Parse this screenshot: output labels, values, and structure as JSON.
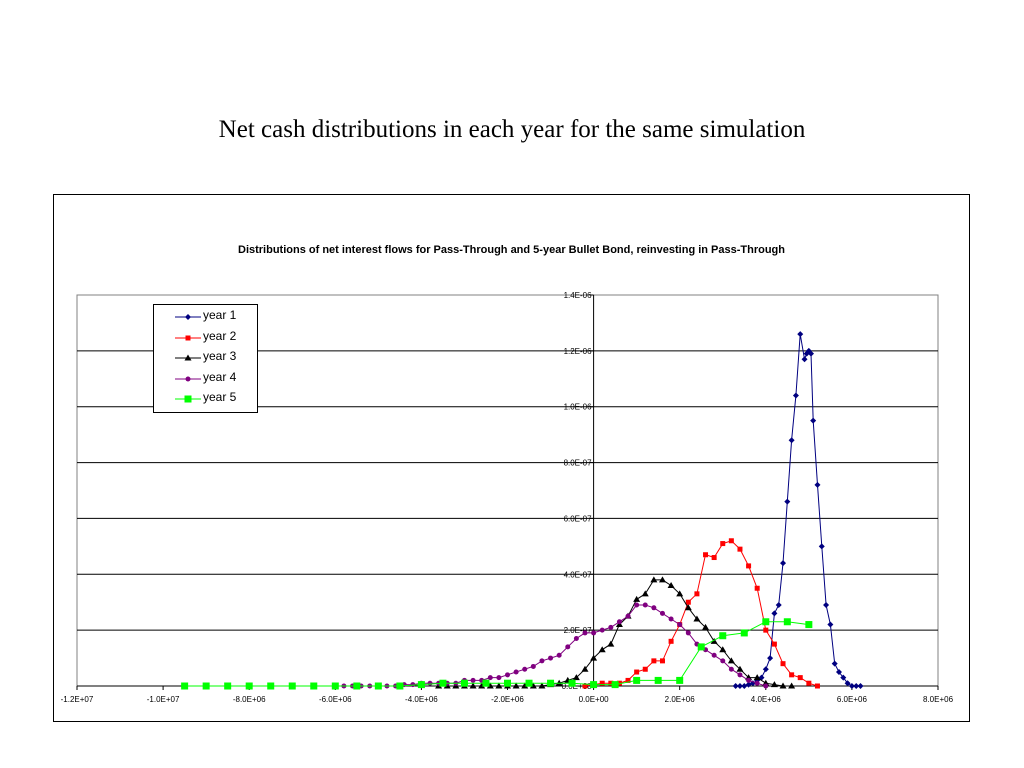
{
  "slide": {
    "title": "Net cash distributions in each year for the same simulation"
  },
  "chart_data": {
    "type": "line",
    "title": "Distributions of net interest flows for Pass-Through and 5-year Bullet Bond, reinvesting in Pass-Through",
    "xlabel": "",
    "ylabel": "",
    "xlim": [
      -12000000,
      8000000
    ],
    "ylim": [
      0,
      1.4e-06
    ],
    "x_ticks": [
      -12000000,
      -10000000,
      -8000000,
      -6000000,
      -4000000,
      -2000000,
      0,
      2000000,
      4000000,
      6000000,
      8000000
    ],
    "x_tick_labels": [
      "-1.2E+07",
      "-1.0E+07",
      "-8.0E+06",
      "-6.0E+06",
      "-4.0E+06",
      "-2.0E+06",
      "0.0E+00",
      "2.0E+06",
      "4.0E+06",
      "6.0E+06",
      "8.0E+06"
    ],
    "y_ticks": [
      0,
      2e-07,
      4e-07,
      6e-07,
      8e-07,
      1e-06,
      1.2e-06,
      1.4e-06
    ],
    "y_tick_labels": [
      "0.0E+00",
      "2.0E-07",
      "4.0E-07",
      "6.0E-07",
      "8.0E-07",
      "1.0E-06",
      "1.2E-06",
      "1.4E-06"
    ],
    "grid": "horizontal",
    "legend_position": "top-left",
    "series": [
      {
        "name": "year 1",
        "color": "#000080",
        "marker": "diamond",
        "x": [
          3300000,
          3400000,
          3500000,
          3600000,
          3700000,
          3800000,
          3900000,
          4000000,
          4100000,
          4200000,
          4300000,
          4400000,
          4500000,
          4600000,
          4700000,
          4800000,
          4900000,
          4950000,
          5000000,
          5050000,
          5100000,
          5200000,
          5300000,
          5400000,
          5500000,
          5600000,
          5700000,
          5800000,
          5900000,
          6000000,
          6100000,
          6200000
        ],
        "y": [
          0,
          0,
          0,
          5e-09,
          1e-08,
          2e-08,
          3e-08,
          6e-08,
          1e-07,
          2.6e-07,
          2.9e-07,
          4.4e-07,
          6.6e-07,
          8.8e-07,
          1.04e-06,
          1.26e-06,
          1.17e-06,
          1.19e-06,
          1.2e-06,
          1.19e-06,
          9.5e-07,
          7.2e-07,
          5e-07,
          2.9e-07,
          2.2e-07,
          8e-08,
          5e-08,
          3e-08,
          1e-08,
          0,
          0,
          0
        ]
      },
      {
        "name": "year 2",
        "color": "#ff0000",
        "marker": "square",
        "x": [
          -200000,
          0,
          200000,
          400000,
          600000,
          800000,
          1000000,
          1200000,
          1400000,
          1600000,
          1800000,
          2000000,
          2200000,
          2400000,
          2600000,
          2800000,
          3000000,
          3200000,
          3400000,
          3600000,
          3800000,
          4000000,
          4200000,
          4400000,
          4600000,
          4800000,
          5000000,
          5200000
        ],
        "y": [
          0,
          5e-09,
          1e-08,
          1e-08,
          1e-08,
          2e-08,
          5e-08,
          6e-08,
          9e-08,
          9e-08,
          1.6e-07,
          2.2e-07,
          3e-07,
          3.3e-07,
          4.7e-07,
          4.6e-07,
          5.1e-07,
          5.2e-07,
          4.9e-07,
          4.3e-07,
          3.5e-07,
          2e-07,
          1.5e-07,
          8e-08,
          4e-08,
          3e-08,
          1e-08,
          0
        ]
      },
      {
        "name": "year 3",
        "color": "#000000",
        "marker": "triangle",
        "x": [
          -3600000,
          -3400000,
          -3200000,
          -3000000,
          -2800000,
          -2600000,
          -2400000,
          -2200000,
          -2000000,
          -1800000,
          -1600000,
          -1400000,
          -1200000,
          -1000000,
          -800000,
          -600000,
          -400000,
          -200000,
          0,
          200000,
          400000,
          600000,
          800000,
          1000000,
          1200000,
          1400000,
          1600000,
          1800000,
          2000000,
          2200000,
          2400000,
          2600000,
          2800000,
          3000000,
          3200000,
          3400000,
          3600000,
          3800000,
          4000000,
          4200000,
          4400000,
          4600000
        ],
        "y": [
          0,
          0,
          0,
          0,
          0,
          0,
          0,
          0,
          0,
          0,
          0,
          0,
          0,
          5e-09,
          1e-08,
          2e-08,
          3e-08,
          6e-08,
          1e-07,
          1.3e-07,
          1.5e-07,
          2.2e-07,
          2.5e-07,
          3.1e-07,
          3.3e-07,
          3.8e-07,
          3.8e-07,
          3.6e-07,
          3.3e-07,
          2.8e-07,
          2.4e-07,
          2.1e-07,
          1.6e-07,
          1.3e-07,
          9e-08,
          6e-08,
          3e-08,
          3e-08,
          1e-08,
          5e-09,
          0,
          0
        ]
      },
      {
        "name": "year 4",
        "color": "#800080",
        "marker": "circle",
        "x": [
          -6000000,
          -5800000,
          -5600000,
          -5400000,
          -5200000,
          -5000000,
          -4800000,
          -4600000,
          -4400000,
          -4200000,
          -4000000,
          -3800000,
          -3600000,
          -3400000,
          -3200000,
          -3000000,
          -2800000,
          -2600000,
          -2400000,
          -2200000,
          -2000000,
          -1800000,
          -1600000,
          -1400000,
          -1200000,
          -1000000,
          -800000,
          -600000,
          -400000,
          -200000,
          0,
          200000,
          400000,
          600000,
          800000,
          1000000,
          1200000,
          1400000,
          1600000,
          1800000,
          2000000,
          2200000,
          2400000,
          2600000,
          2800000,
          3000000,
          3200000,
          3400000,
          3600000,
          3800000,
          4000000
        ],
        "y": [
          0,
          0,
          0,
          0,
          0,
          0,
          0,
          0,
          5e-09,
          5e-09,
          1e-08,
          1e-08,
          1e-08,
          1e-08,
          1e-08,
          2e-08,
          2e-08,
          2e-08,
          3e-08,
          3e-08,
          4e-08,
          5e-08,
          6e-08,
          7e-08,
          9e-08,
          1e-07,
          1.1e-07,
          1.4e-07,
          1.7e-07,
          1.9e-07,
          1.9e-07,
          2e-07,
          2.1e-07,
          2.3e-07,
          2.5e-07,
          2.9e-07,
          2.9e-07,
          2.8e-07,
          2.6e-07,
          2.4e-07,
          2.2e-07,
          1.9e-07,
          1.5e-07,
          1.3e-07,
          1.1e-07,
          9e-08,
          6e-08,
          4e-08,
          2e-08,
          1e-08,
          0
        ]
      },
      {
        "name": "year 5",
        "color": "#00ff00",
        "marker": "square",
        "x": [
          -9500000,
          -9000000,
          -8500000,
          -8000000,
          -7500000,
          -7000000,
          -6500000,
          -6000000,
          -5500000,
          -5000000,
          -4500000,
          -4000000,
          -3500000,
          -3000000,
          -2500000,
          -2000000,
          -1500000,
          -1000000,
          -500000,
          0,
          500000,
          1000000,
          1500000,
          2000000,
          2500000,
          3000000,
          3500000,
          4000000,
          4500000,
          5000000
        ],
        "y": [
          0,
          0,
          0,
          0,
          0,
          0,
          0,
          0,
          0,
          0,
          0,
          5e-09,
          1e-08,
          1e-08,
          1e-08,
          1e-08,
          1e-08,
          1e-08,
          1e-08,
          5e-09,
          5e-09,
          2e-08,
          2e-08,
          2e-08,
          1.4e-07,
          1.8e-07,
          1.9e-07,
          2.3e-07,
          2.3e-07,
          2.2e-07
        ]
      }
    ]
  }
}
